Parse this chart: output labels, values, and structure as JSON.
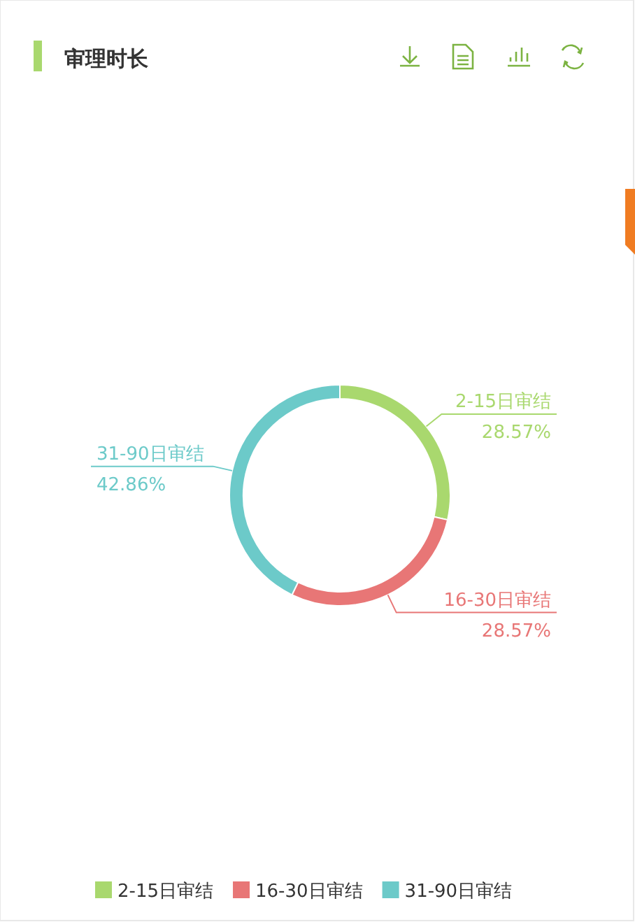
{
  "chart_data": {
    "type": "donut",
    "title": "审理时长",
    "categories": [
      "2-15日审结",
      "16-30日审结",
      "31-90日审结"
    ],
    "values": [
      28.57,
      28.57,
      42.86
    ],
    "value_labels": [
      "28.57%",
      "28.57%",
      "42.86%"
    ],
    "colors": [
      "#a9d86e",
      "#e87676",
      "#6ccac9"
    ],
    "legend": "bottom"
  }
}
